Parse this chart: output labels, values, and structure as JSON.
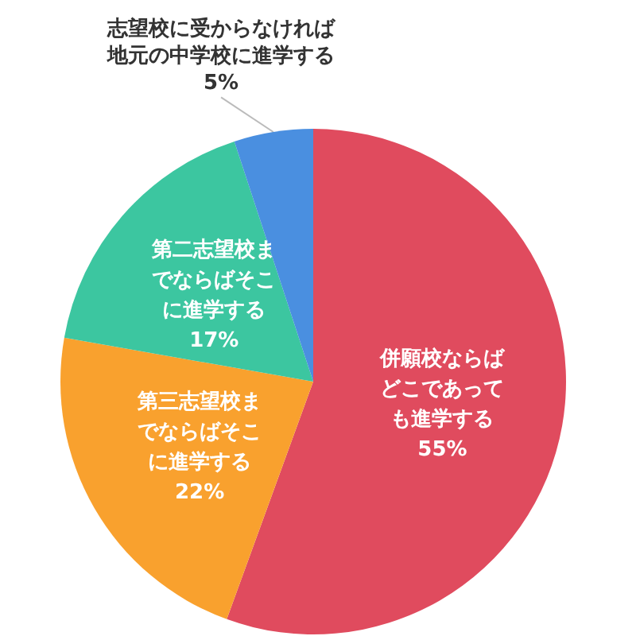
{
  "chart_data": {
    "type": "pie",
    "categories": [
      "併願校ならばどこであっても進学する",
      "第三志望校までならばそこに進学する",
      "第二志望校までならばそこに進学する",
      "志望校に受からなければ地元の中学校に進学する"
    ],
    "values": [
      55,
      22,
      17,
      5
    ],
    "value_labels": [
      "55%",
      "22%",
      "17%",
      "5%"
    ],
    "colors": [
      "#e04b5e",
      "#f9a12e",
      "#3cc6a0",
      "#4a8fe0"
    ],
    "legend": false
  }
}
